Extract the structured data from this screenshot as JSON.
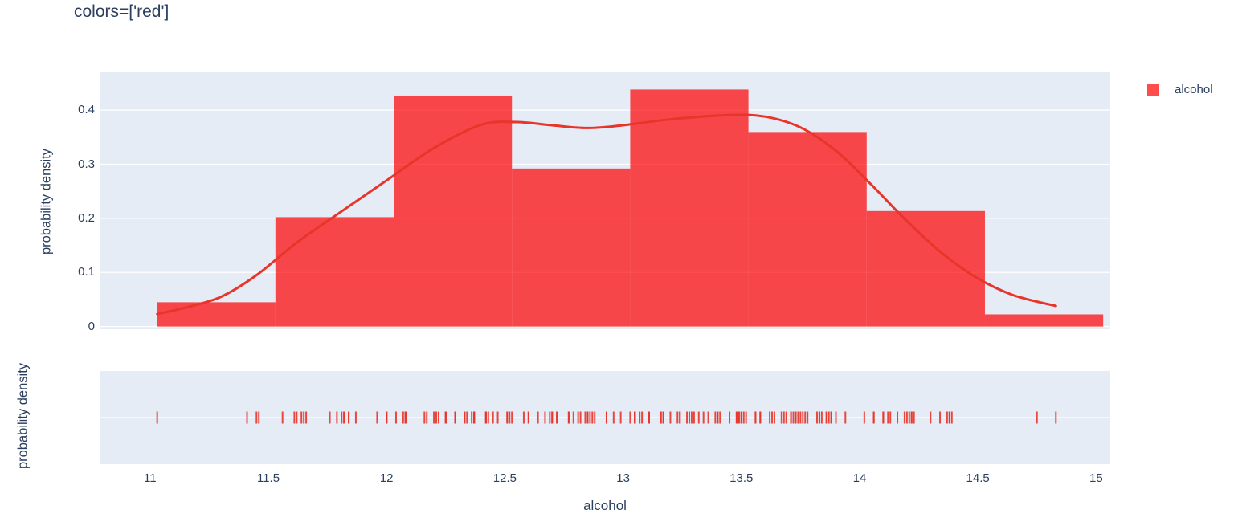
{
  "title": "colors=['red']",
  "legend": {
    "items": [
      {
        "label": "alcohol",
        "color": "red"
      }
    ]
  },
  "axes": {
    "x_title": "alcohol",
    "y_title_top": "probability density",
    "y_title_bottom": "probability density",
    "x_tick_labels": [
      "11",
      "11.5",
      "12",
      "12.5",
      "13",
      "13.5",
      "14",
      "14.5",
      "15"
    ],
    "x_tick_values": [
      11,
      11.5,
      12,
      12.5,
      13,
      13.5,
      14,
      14.5,
      15
    ],
    "y_tick_labels": [
      "0",
      "0.1",
      "0.2",
      "0.3",
      "0.4"
    ],
    "y_tick_values": [
      0,
      0.1,
      0.2,
      0.3,
      0.4
    ]
  },
  "colors": {
    "font": "#2a3f5f",
    "paper_bg": "#ffffff",
    "plot_bg": "#e5ecf6",
    "grid": "#ffffff",
    "bar_fill": "#ff0000",
    "bar_opacity": 0.7,
    "kde_line": "#e8352a",
    "rug_tick": "#e8352a"
  },
  "chart_data": {
    "type": "distplot (histogram + kde line + rug)",
    "title": "colors=['red']",
    "xlabel": "alcohol",
    "ylabel": "probability density",
    "series": [
      {
        "name": "alcohol",
        "color": "red"
      }
    ],
    "xlim": [
      10.79,
      15.06
    ],
    "ylim": [
      -0.005,
      0.47
    ],
    "grid": true,
    "legend_position": "top-right",
    "histogram": {
      "bin_start": 11.03,
      "bin_size": 0.5,
      "bin_edges": [
        11.03,
        11.53,
        12.03,
        12.53,
        13.03,
        13.53,
        14.03,
        14.53,
        15.03
      ],
      "counts": [
        4,
        18,
        38,
        26,
        39,
        32,
        19,
        2
      ],
      "densities": [
        0.0449,
        0.2022,
        0.427,
        0.2921,
        0.4382,
        0.3596,
        0.2135,
        0.0225
      ]
    },
    "kde_curve": [
      [
        11.03,
        0.023
      ],
      [
        11.15,
        0.035
      ],
      [
        11.3,
        0.055
      ],
      [
        11.45,
        0.095
      ],
      [
        11.62,
        0.155
      ],
      [
        11.8,
        0.21
      ],
      [
        12.0,
        0.27
      ],
      [
        12.2,
        0.33
      ],
      [
        12.4,
        0.373
      ],
      [
        12.55,
        0.378
      ],
      [
        12.7,
        0.372
      ],
      [
        12.85,
        0.367
      ],
      [
        13.0,
        0.372
      ],
      [
        13.2,
        0.383
      ],
      [
        13.45,
        0.391
      ],
      [
        13.6,
        0.388
      ],
      [
        13.75,
        0.368
      ],
      [
        13.9,
        0.325
      ],
      [
        14.05,
        0.262
      ],
      [
        14.2,
        0.195
      ],
      [
        14.35,
        0.135
      ],
      [
        14.5,
        0.089
      ],
      [
        14.65,
        0.058
      ],
      [
        14.83,
        0.038
      ]
    ],
    "rug_values": [
      14.23,
      13.2,
      13.16,
      14.37,
      13.24,
      14.2,
      14.39,
      14.06,
      14.83,
      13.86,
      14.1,
      14.12,
      13.75,
      14.75,
      14.38,
      13.63,
      14.3,
      13.83,
      14.19,
      13.64,
      14.06,
      12.93,
      13.71,
      12.85,
      13.5,
      13.05,
      13.39,
      13.3,
      13.87,
      14.02,
      13.73,
      13.58,
      13.68,
      13.76,
      13.51,
      13.48,
      13.28,
      13.05,
      13.07,
      14.22,
      13.56,
      13.41,
      13.88,
      13.24,
      13.05,
      14.21,
      14.38,
      13.9,
      14.1,
      13.94,
      13.05,
      13.83,
      13.82,
      13.77,
      13.74,
      13.56,
      14.22,
      13.29,
      13.72,
      12.37,
      12.33,
      12.64,
      13.67,
      12.37,
      12.17,
      12.37,
      13.11,
      12.37,
      13.34,
      12.21,
      12.29,
      13.86,
      13.49,
      12.99,
      11.96,
      11.66,
      13.03,
      11.84,
      12.33,
      12.7,
      12.0,
      12.72,
      12.08,
      13.05,
      11.84,
      12.67,
      12.16,
      11.65,
      11.64,
      12.08,
      12.08,
      12.0,
      12.69,
      12.29,
      11.62,
      12.47,
      11.81,
      12.29,
      12.37,
      12.29,
      12.08,
      12.6,
      12.34,
      11.82,
      12.51,
      12.42,
      12.25,
      12.72,
      12.22,
      11.61,
      11.46,
      12.52,
      11.76,
      11.41,
      12.08,
      11.03,
      11.82,
      12.42,
      12.77,
      12.0,
      11.45,
      11.56,
      12.42,
      13.05,
      11.87,
      12.07,
      12.43,
      11.79,
      12.37,
      12.04,
      12.86,
      12.88,
      12.81,
      12.7,
      12.51,
      12.6,
      12.25,
      12.53,
      13.49,
      12.84,
      12.93,
      13.36,
      13.52,
      13.62,
      12.25,
      13.16,
      13.88,
      12.87,
      13.32,
      13.08,
      13.5,
      12.79,
      13.11,
      13.23,
      12.58,
      13.17,
      13.84,
      12.45,
      14.34,
      13.48,
      12.36,
      13.69,
      12.85,
      12.96,
      13.78,
      13.73,
      13.45,
      12.82,
      13.58,
      13.4,
      12.2,
      12.77,
      14.16,
      13.71,
      13.4,
      13.27,
      13.17,
      14.13
    ]
  }
}
